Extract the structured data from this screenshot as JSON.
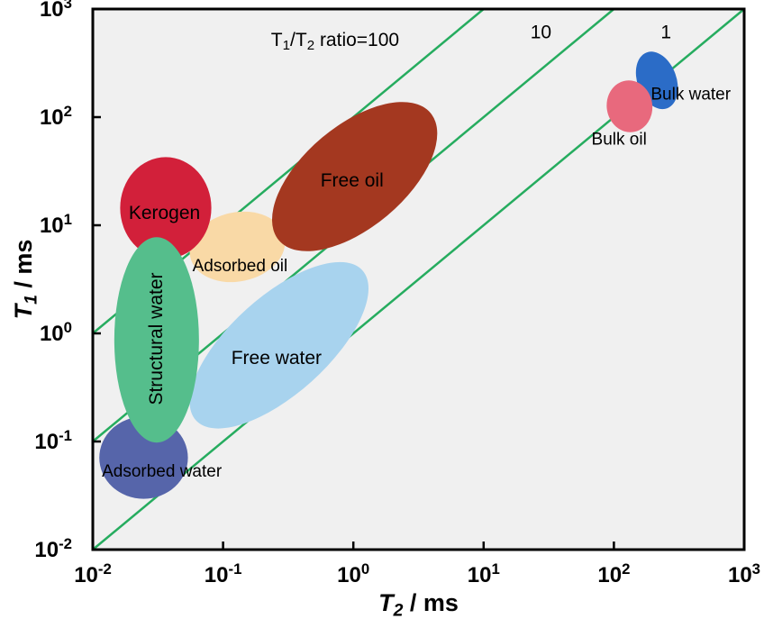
{
  "figure": {
    "background": "#FFFFFF",
    "description": "NMR T1-T2 relaxation map of fluid components in shale"
  },
  "chart_data": {
    "type": "scatter",
    "subtype": "log-log ellipse region map",
    "title": "",
    "xlabel": "T2 / ms",
    "ylabel": "T1 / ms",
    "xlabel_parts": [
      {
        "t": "T",
        "italic": true
      },
      {
        "sub": "2",
        "italic": true
      },
      {
        "t": " / ms"
      }
    ],
    "ylabel_parts": [
      {
        "t": "T",
        "italic": true
      },
      {
        "sub": "1",
        "italic": true
      },
      {
        "t": " / ms"
      }
    ],
    "x_log_range": [
      -2,
      3
    ],
    "y_log_range": [
      -2,
      3
    ],
    "tick_base": "10",
    "x_tick_exponents": [
      "-2",
      "-1",
      "0",
      "1",
      "2",
      "3"
    ],
    "y_tick_exponents": [
      "-2",
      "-1",
      "0",
      "1",
      "2",
      "3"
    ],
    "grid": false,
    "legend": "none",
    "plot_background": "#F0F0F0",
    "frame_color": "#000000",
    "text_color": "#000000",
    "ratio_line_color": "#26AC5F",
    "ratio_lines": [
      {
        "ratio": 100,
        "label": "T1/T2 ratio=100",
        "label_parts": [
          {
            "t": "T"
          },
          {
            "sub": "1"
          },
          {
            "t": "/T"
          },
          {
            "sub": "2"
          },
          {
            "t": " ratio=100"
          }
        ],
        "label_pos_log": [
          -0.14,
          2.72
        ],
        "label_size": 21
      },
      {
        "ratio": 10,
        "label": "10",
        "label_parts": [
          {
            "t": "10"
          }
        ],
        "label_pos_log": [
          1.44,
          2.79
        ],
        "label_size": 21
      },
      {
        "ratio": 1,
        "label": "1",
        "label_parts": [
          {
            "t": "1"
          }
        ],
        "label_pos_log": [
          2.4,
          2.79
        ],
        "label_size": 21
      }
    ],
    "regions": [
      {
        "id": "adsorbed-oil",
        "label": "Adsorbed oil",
        "color": "#F9D9A6",
        "t2_ms": 0.13,
        "t1_ms": 6.3,
        "center_log": [
          -0.89,
          0.8
        ],
        "radii_log": [
          0.37,
          0.32
        ],
        "rotation_deg": -12,
        "label_pos_log": [
          -0.87,
          0.63
        ],
        "label_size": 19,
        "label_rotation_deg": 0
      },
      {
        "id": "free-water",
        "label": "Free water",
        "color": "#A8D3EE",
        "t2_ms": 0.27,
        "t1_ms": 0.78,
        "center_log": [
          -0.57,
          -0.11
        ],
        "radii_log": [
          0.86,
          0.45
        ],
        "rotation_deg": -42,
        "label_pos_log": [
          -0.59,
          -0.22
        ],
        "label_size": 21,
        "label_rotation_deg": 0
      },
      {
        "id": "kerogen",
        "label": "Kerogen",
        "color": "#D2203A",
        "t2_ms": 0.036,
        "t1_ms": 14.5,
        "center_log": [
          -1.44,
          1.16
        ],
        "radii_log": [
          0.35,
          0.47
        ],
        "rotation_deg": 0,
        "label_pos_log": [
          -1.45,
          1.12
        ],
        "label_size": 21,
        "label_rotation_deg": 0
      },
      {
        "id": "adsorbed-water",
        "label": "Adsorbed water",
        "color": "#5665AA",
        "t2_ms": 0.025,
        "t1_ms": 0.071,
        "center_log": [
          -1.61,
          -1.15
        ],
        "radii_log": [
          0.34,
          0.38
        ],
        "rotation_deg": 0,
        "label_pos_log": [
          -1.47,
          -1.27
        ],
        "label_size": 19,
        "label_rotation_deg": 0
      },
      {
        "id": "structural-water",
        "label": "Structural water",
        "color": "#55BE8C",
        "t2_ms": 0.031,
        "t1_ms": 0.87,
        "center_log": [
          -1.51,
          -0.06
        ],
        "radii_log": [
          0.325,
          0.95
        ],
        "rotation_deg": 0,
        "label_pos_log": [
          -1.52,
          -0.05
        ],
        "label_size": 21,
        "label_rotation_deg": -90
      },
      {
        "id": "free-oil",
        "label": "Free oil",
        "color": "#A43820",
        "t2_ms": 1.03,
        "t1_ms": 28,
        "center_log": [
          0.01,
          1.45
        ],
        "radii_log": [
          0.76,
          0.47
        ],
        "rotation_deg": -40,
        "label_pos_log": [
          -0.01,
          1.42
        ],
        "label_size": 21,
        "label_rotation_deg": 0
      },
      {
        "id": "bulk-water",
        "label": "Bulk water",
        "color": "#2B6CC7",
        "t2_ms": 213,
        "t1_ms": 220,
        "center_log": [
          2.33,
          2.34
        ],
        "radii_log": [
          0.15,
          0.275
        ],
        "rotation_deg": -20,
        "label_pos_log": [
          2.59,
          2.22
        ],
        "label_size": 19,
        "label_rotation_deg": 0
      },
      {
        "id": "bulk-oil",
        "label": "Bulk oil",
        "color": "#E8697D",
        "t2_ms": 130,
        "t1_ms": 126,
        "center_log": [
          2.12,
          2.1
        ],
        "radii_log": [
          0.175,
          0.24
        ],
        "rotation_deg": -8,
        "label_pos_log": [
          2.04,
          1.8
        ],
        "label_size": 19,
        "label_rotation_deg": 0
      }
    ]
  }
}
